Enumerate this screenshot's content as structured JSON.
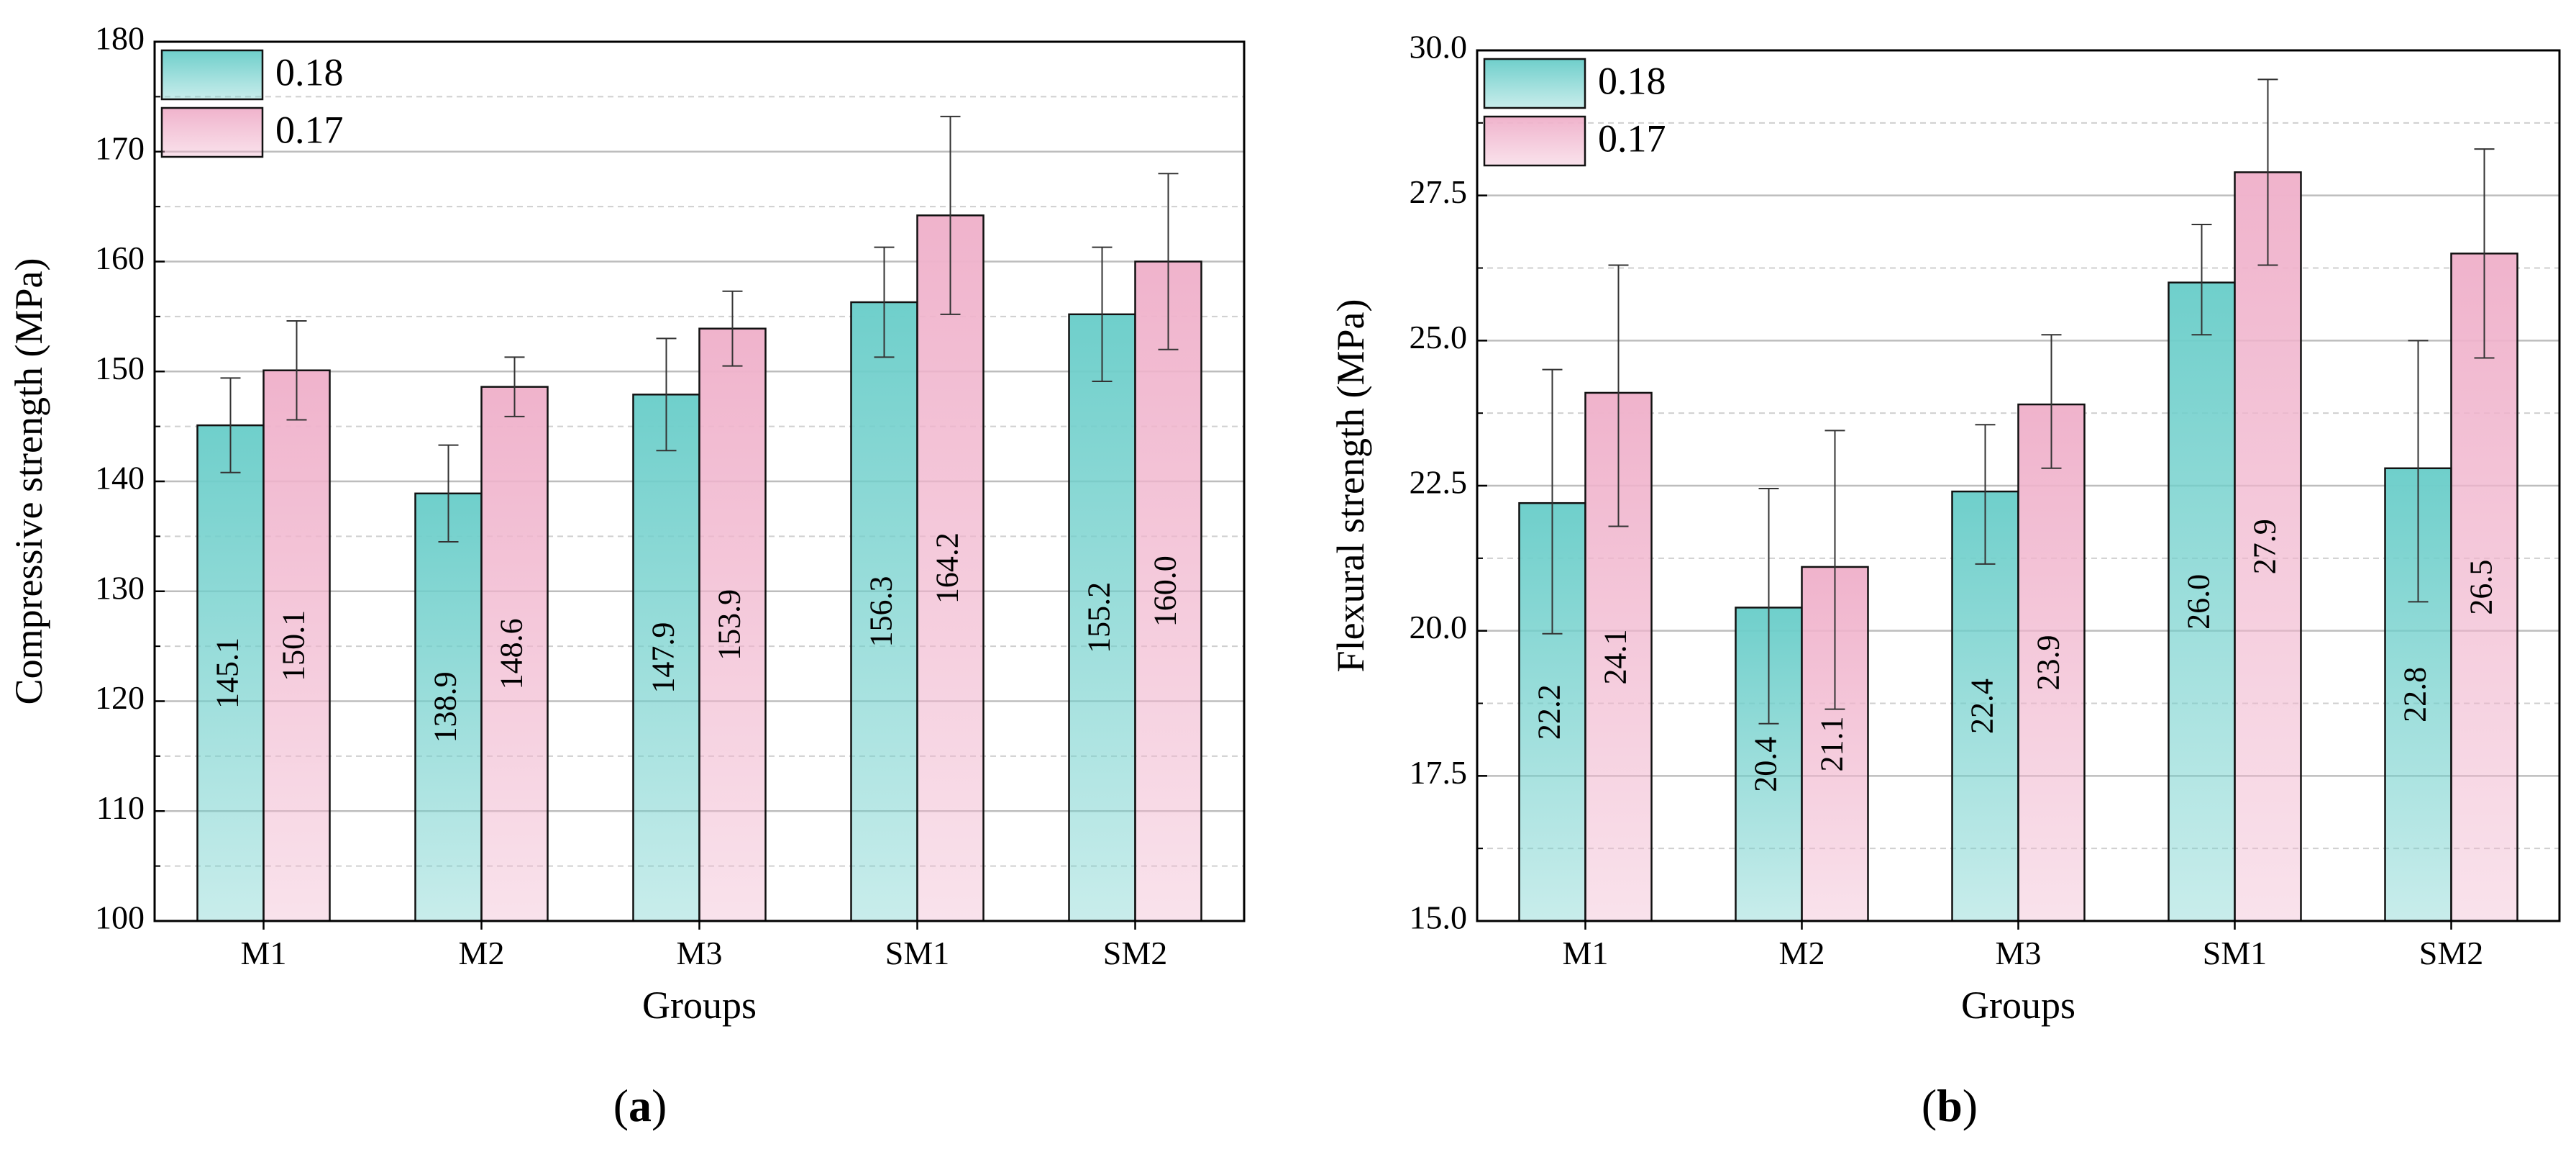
{
  "chart_data": [
    {
      "type": "bar",
      "panel_label": "a",
      "categories": [
        "M1",
        "M2",
        "M3",
        "SM1",
        "SM2"
      ],
      "xlabel": "Groups",
      "ylabel": "Compressive strength (MPa)",
      "ylim": [
        100,
        180
      ],
      "yticks": [
        "100",
        "110",
        "120",
        "130",
        "140",
        "150",
        "160",
        "170",
        "180"
      ],
      "grid": true,
      "legend_position": "top-left",
      "series": [
        {
          "name": "0.18",
          "color": "#6fcfcb",
          "values": [
            145.1,
            138.9,
            147.9,
            156.3,
            155.2
          ],
          "labels": [
            "145.1",
            "138.9",
            "147.9",
            "156.3",
            "155.2"
          ],
          "err_low": [
            140.8,
            134.5,
            142.8,
            151.3,
            149.1
          ],
          "err_high": [
            149.4,
            143.3,
            153.0,
            161.3,
            161.3
          ]
        },
        {
          "name": "0.17",
          "color": "#f0b3cc",
          "values": [
            150.1,
            148.6,
            153.9,
            164.2,
            160.0
          ],
          "labels": [
            "150.1",
            "148.6",
            "153.9",
            "164.2",
            "160.0"
          ],
          "err_low": [
            145.6,
            145.9,
            150.5,
            155.2,
            152.0
          ],
          "err_high": [
            154.6,
            151.3,
            157.3,
            173.2,
            168.0
          ]
        }
      ]
    },
    {
      "type": "bar",
      "panel_label": "b",
      "categories": [
        "M1",
        "M2",
        "M3",
        "SM1",
        "SM2"
      ],
      "xlabel": "Groups",
      "ylabel": "Flexural strength (MPa)",
      "ylim": [
        15,
        30
      ],
      "yticks": [
        "15.0",
        "17.5",
        "20.0",
        "22.5",
        "25.0",
        "27.5",
        "30.0"
      ],
      "grid": true,
      "legend_position": "top-left",
      "series": [
        {
          "name": "0.18",
          "color": "#6fcfcb",
          "values": [
            22.2,
            20.4,
            22.4,
            26.0,
            22.8
          ],
          "labels": [
            "22.2",
            "20.4",
            "22.4",
            "26.0",
            "22.8"
          ],
          "err_low": [
            19.95,
            18.4,
            21.15,
            25.1,
            20.5
          ],
          "err_high": [
            24.5,
            22.45,
            23.55,
            27.0,
            25.0
          ]
        },
        {
          "name": "0.17",
          "color": "#f0b3cc",
          "values": [
            24.1,
            21.1,
            23.9,
            27.9,
            26.5
          ],
          "labels": [
            "24.1",
            "21.1",
            "23.9",
            "27.9",
            "26.5"
          ],
          "err_low": [
            21.8,
            18.65,
            22.8,
            26.3,
            24.7
          ],
          "err_high": [
            26.3,
            23.45,
            25.1,
            29.5,
            28.3
          ]
        }
      ]
    }
  ]
}
